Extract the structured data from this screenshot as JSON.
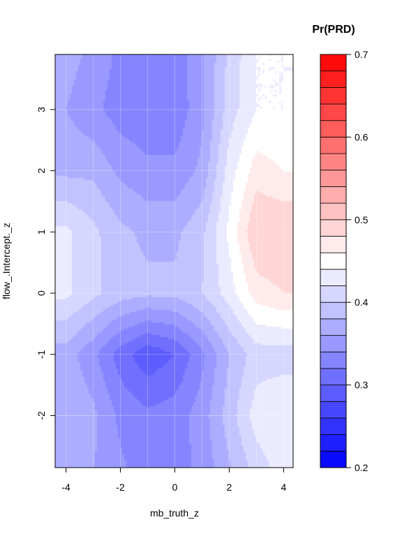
{
  "chart_data": {
    "type": "heatmap",
    "style": "filled-contour",
    "title": "",
    "xlabel": "mb_truth_z",
    "ylabel": "flow_.Intercept._z",
    "xlim": [
      -4.4,
      4.35
    ],
    "ylim": [
      -2.85,
      3.9
    ],
    "xticks": [
      -4,
      -2,
      0,
      2,
      4
    ],
    "yticks": [
      -2,
      -1,
      0,
      1,
      2,
      3
    ],
    "grid": true,
    "x": [
      -4,
      -3,
      -2,
      -1,
      0,
      1,
      2,
      3,
      4
    ],
    "y": [
      -3,
      -2,
      -1,
      0,
      1,
      2,
      3,
      4
    ],
    "z": [
      [
        0.37,
        0.36,
        0.345,
        0.33,
        0.33,
        0.345,
        0.375,
        0.405,
        0.43
      ],
      [
        0.38,
        0.365,
        0.335,
        0.325,
        0.33,
        0.35,
        0.39,
        0.43,
        0.44
      ],
      [
        0.37,
        0.345,
        0.31,
        0.285,
        0.3,
        0.335,
        0.38,
        0.41,
        0.41
      ],
      [
        0.425,
        0.405,
        0.39,
        0.385,
        0.385,
        0.4,
        0.43,
        0.47,
        0.48
      ],
      [
        0.425,
        0.405,
        0.385,
        0.375,
        0.375,
        0.395,
        0.445,
        0.5,
        0.5
      ],
      [
        0.375,
        0.375,
        0.355,
        0.345,
        0.345,
        0.365,
        0.43,
        0.47,
        0.46
      ],
      [
        0.36,
        0.345,
        0.33,
        0.325,
        0.325,
        0.355,
        0.41,
        0.44,
        0.44
      ],
      [
        0.37,
        0.355,
        0.335,
        0.33,
        0.33,
        0.355,
        0.405,
        0.44,
        0.44
      ]
    ],
    "levels": [
      0.2,
      0.22,
      0.24,
      0.26,
      0.28,
      0.3,
      0.32,
      0.34,
      0.36,
      0.38,
      0.4,
      0.42,
      0.44,
      0.46,
      0.48,
      0.5,
      0.52,
      0.54,
      0.56,
      0.58,
      0.6,
      0.62,
      0.64,
      0.66,
      0.68,
      0.7
    ],
    "legend": {
      "title": "Pr(PRD)",
      "range": [
        0.2,
        0.7
      ],
      "ticks": [
        0.2,
        0.3,
        0.4,
        0.5,
        0.6,
        0.7
      ],
      "placement": "right",
      "low_color": "#0000ff",
      "mid_color": "#ffffff",
      "high_color": "#ff0000"
    }
  }
}
